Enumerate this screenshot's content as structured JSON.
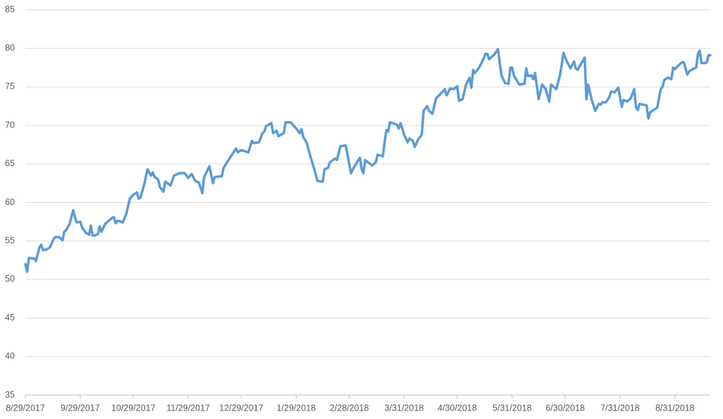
{
  "chart_data": {
    "type": "line",
    "color": "#5b9bd5",
    "grid": true,
    "xlim": [
      "8/29/2017",
      "9/20/2018"
    ],
    "xticks": [
      "8/29/2017",
      "9/29/2017",
      "10/29/2017",
      "11/29/2017",
      "12/29/2017",
      "1/29/2018",
      "2/28/2018",
      "3/31/2018",
      "4/30/2018",
      "5/31/2018",
      "6/30/2018",
      "7/31/2018",
      "8/31/2018"
    ],
    "ylim": [
      35,
      85
    ],
    "yticks": [
      35,
      40,
      45,
      50,
      55,
      60,
      65,
      70,
      75,
      80,
      85
    ],
    "x": [
      "8/29/2017",
      "8/30/2017",
      "8/31/2017",
      "9/3/2017",
      "9/4/2017",
      "9/6/2017",
      "9/7/2017",
      "9/8/2017",
      "9/10/2017",
      "9/12/2017",
      "9/14/2017",
      "9/15/2017",
      "9/17/2017",
      "9/19/2017",
      "9/20/2017",
      "9/21/2017",
      "9/23/2017",
      "9/25/2017",
      "9/26/2017",
      "9/27/2017",
      "9/29/2017",
      "9/30/2017",
      "10/2/2017",
      "10/4/2017",
      "10/5/2017",
      "10/6/2017",
      "10/7/2017",
      "10/9/2017",
      "10/10/2017",
      "10/11/2017",
      "10/13/2017",
      "10/15/2017",
      "10/17/2017",
      "10/18/2017",
      "10/19/2017",
      "10/20/2017",
      "10/21/2017",
      "10/23/2017",
      "10/25/2017",
      "10/26/2017",
      "10/27/2017",
      "10/29/2017",
      "10/31/2017",
      "11/1/2017",
      "11/2/2017",
      "11/4/2017",
      "11/6/2017",
      "11/8/2017",
      "11/9/2017",
      "11/10/2017",
      "11/12/2017",
      "11/13/2017",
      "11/15/2017",
      "11/16/2017",
      "11/19/2017",
      "11/21/2017",
      "11/24/2017",
      "11/27/2017",
      "11/29/2017",
      "12/1/2017",
      "12/3/2017",
      "12/5/2017",
      "12/7/2017",
      "12/8/2017",
      "12/11/2017",
      "12/13/2017",
      "12/14/2017",
      "12/18/2017",
      "12/19/2017",
      "12/24/2017",
      "12/26/2017",
      "12/27/2017",
      "12/29/2017",
      "1/2/2018",
      "1/4/2018",
      "1/5/2018",
      "1/8/2018",
      "1/10/2018",
      "1/11/2018",
      "1/12/2018",
      "1/15/2018",
      "1/16/2018",
      "1/18/2018",
      "1/19/2018",
      "1/22/2018",
      "1/23/2018",
      "1/26/2018",
      "1/29/2018",
      "1/31/2018",
      "2/1/2018",
      "2/2/2018",
      "2/4/2018",
      "2/6/2018",
      "2/8/2018",
      "2/10/2018",
      "2/13/2018",
      "2/14/2018",
      "2/16/2018",
      "2/17/2018",
      "2/20/2018",
      "2/21/2018",
      "2/23/2018",
      "2/26/2018",
      "2/27/2018",
      "3/1/2018",
      "3/3/2018",
      "3/6/2018",
      "3/7/2018",
      "3/8/2018",
      "3/9/2018",
      "3/13/2018",
      "3/15/2018",
      "3/16/2018",
      "3/19/2018",
      "3/20/2018",
      "3/21/2018",
      "3/22/2018",
      "3/23/2018",
      "3/27/2018",
      "3/28/2018",
      "3/29/2018",
      "3/31/2018",
      "4/2/2018",
      "4/3/2018",
      "4/5/2018",
      "4/6/2018",
      "4/8/2018",
      "4/10/2018",
      "4/11/2018",
      "4/13/2018",
      "4/14/2018",
      "4/16/2018",
      "4/18/2018",
      "4/21/2018",
      "4/23/2018",
      "4/24/2018",
      "4/26/2018",
      "4/28/2018",
      "4/30/2018",
      "5/1/2018",
      "5/3/2018",
      "5/5/2018",
      "5/7/2018",
      "5/8/2018",
      "5/9/2018",
      "5/10/2018",
      "5/12/2018",
      "5/14/2018",
      "5/16/2018",
      "5/17/2018",
      "5/18/2018",
      "5/21/2018",
      "5/23/2018",
      "5/25/2018",
      "5/27/2018",
      "5/29/2018",
      "5/30/2018",
      "5/31/2018",
      "6/1/2018",
      "6/4/2018",
      "6/7/2018",
      "6/8/2018",
      "6/9/2018",
      "6/11/2018",
      "6/12/2018",
      "6/13/2018",
      "6/15/2018",
      "6/17/2018",
      "6/19/2018",
      "6/21/2018",
      "6/22/2018",
      "6/25/2018",
      "6/27/2018",
      "6/28/2018",
      "6/29/2018",
      "7/1/2018",
      "7/3/2018",
      "7/5/2018",
      "7/6/2018",
      "7/7/2018",
      "7/8/2018",
      "7/11/2018",
      "7/12/2018",
      "7/13/2018",
      "7/15/2018",
      "7/17/2018",
      "7/19/2018",
      "7/20/2018",
      "7/21/2018",
      "7/23/2018",
      "7/25/2018",
      "7/26/2018",
      "7/28/2018",
      "7/30/2018",
      "8/1/2018",
      "8/2/2018",
      "8/4/2018",
      "8/6/2018",
      "8/8/2018",
      "8/9/2018",
      "8/10/2018",
      "8/11/2018",
      "8/13/2018",
      "8/15/2018",
      "8/16/2018",
      "8/17/2018",
      "8/19/2018",
      "8/21/2018",
      "8/23/2018",
      "8/24/2018",
      "8/25/2018",
      "8/27/2018",
      "8/29/2018",
      "8/30/2018",
      "8/31/2018",
      "9/2/2018",
      "9/4/2018",
      "9/5/2018",
      "9/7/2018",
      "9/8/2018",
      "9/10/2018",
      "9/12/2018",
      "9/13/2018",
      "9/14/2018",
      "9/15/2018",
      "9/17/2018",
      "9/18/2018",
      "9/19/2018",
      "9/20/2018"
    ],
    "values": [
      52.0,
      51.0,
      52.8,
      52.7,
      52.4,
      54.2,
      54.5,
      53.8,
      53.9,
      54.2,
      55.3,
      55.5,
      55.5,
      55.1,
      56.2,
      56.4,
      57.2,
      59.0,
      58.1,
      57.4,
      57.5,
      56.8,
      56.1,
      55.8,
      57.0,
      55.7,
      55.7,
      55.9,
      56.9,
      56.2,
      57.2,
      57.6,
      58.0,
      58.1,
      57.3,
      57.6,
      57.6,
      57.4,
      58.5,
      59.5,
      60.5,
      61.0,
      61.3,
      60.5,
      60.6,
      62.2,
      64.3,
      63.5,
      63.9,
      63.3,
      63.0,
      62.0,
      61.4,
      62.7,
      62.2,
      63.5,
      63.8,
      63.8,
      63.2,
      63.7,
      62.8,
      62.6,
      61.2,
      63.3,
      64.7,
      62.5,
      63.3,
      63.4,
      64.5,
      66.3,
      67.0,
      66.5,
      66.8,
      66.5,
      68.0,
      67.7,
      67.8,
      69.0,
      69.2,
      69.9,
      70.3,
      69.0,
      69.3,
      68.6,
      69.0,
      70.4,
      70.4,
      69.6,
      69.0,
      69.5,
      68.5,
      67.7,
      66.0,
      64.5,
      62.8,
      62.7,
      64.3,
      64.5,
      65.2,
      65.7,
      65.5,
      67.3,
      67.4,
      66.2,
      63.8,
      64.7,
      65.8,
      64.3,
      63.8,
      65.5,
      64.8,
      65.2,
      66.2,
      66.0,
      67.9,
      69.4,
      69.2,
      70.4,
      70.1,
      69.6,
      70.3,
      68.8,
      67.8,
      68.3,
      68.0,
      67.2,
      68.2,
      68.8,
      71.9,
      72.5,
      71.9,
      71.5,
      73.5,
      74.2,
      74.7,
      73.9,
      74.8,
      74.7,
      75.1,
      73.2,
      73.4,
      75.3,
      76.2,
      74.9,
      77.2,
      76.8,
      77.4,
      78.2,
      79.3,
      79.3,
      78.6,
      79.2,
      79.9,
      76.5,
      75.5,
      75.4,
      77.5,
      77.5,
      76.5,
      75.3,
      75.4,
      77.4,
      76.4,
      76.5,
      76.0,
      76.8,
      73.4,
      75.3,
      74.7,
      73.1,
      75.3,
      74.7,
      76.5,
      77.8,
      79.4,
      78.3,
      77.4,
      78.3,
      77.4,
      77.2,
      77.6,
      78.8,
      73.4,
      75.3,
      73.3,
      71.9,
      72.8,
      72.7,
      73.0,
      73.0,
      73.7,
      74.4,
      74.3,
      74.9,
      72.4,
      73.3,
      73.1,
      73.5,
      74.7,
      72.4,
      72.0,
      72.8,
      72.7,
      72.6,
      70.9,
      71.7,
      72.0,
      72.3,
      74.7,
      75.0,
      75.9,
      76.2,
      76.0,
      77.5,
      77.3,
      77.8,
      78.2,
      78.2,
      76.6,
      77.0,
      77.3,
      77.5,
      79.3,
      79.7,
      78.1,
      78.1,
      78.2,
      79.1,
      79.1
    ]
  }
}
